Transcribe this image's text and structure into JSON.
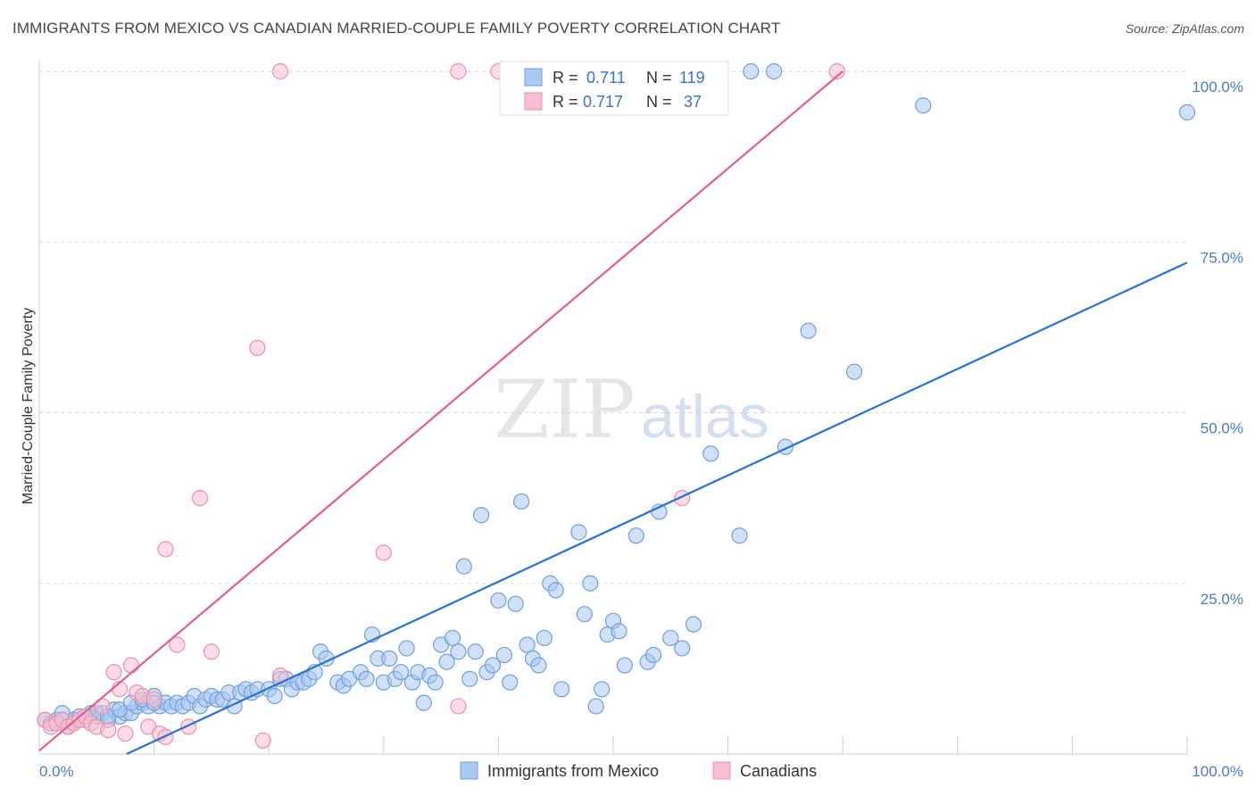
{
  "title": "IMMIGRANTS FROM MEXICO VS CANADIAN MARRIED-COUPLE FAMILY POVERTY CORRELATION CHART",
  "source": "Source: ZipAtlas.com",
  "watermark": {
    "zip": "ZIP",
    "atlas": "atlas"
  },
  "colors": {
    "blue_fill": "#aac8f0",
    "blue_stroke": "#6f9fdd",
    "blue_line": "#2a72d0",
    "pink_fill": "#f7bfd0",
    "pink_stroke": "#ec8fae",
    "pink_line": "#e0608a",
    "tick_text": "#4a7cc9",
    "grid": "#d9d9d9"
  },
  "legend": {
    "r_label": "R =",
    "n_label": "N =",
    "rows": [
      {
        "r": "0.711",
        "n": "119"
      },
      {
        "r": "0.717",
        "n": "37"
      }
    ]
  },
  "chart_data": {
    "type": "scatter",
    "title": "IMMIGRANTS FROM MEXICO VS CANADIAN MARRIED-COUPLE FAMILY POVERTY CORRELATION CHART",
    "xlabel": "",
    "ylabel": "Married-Couple Family Poverty",
    "xlim": [
      0,
      100
    ],
    "ylim": [
      0,
      100
    ],
    "x_tick_labels": [
      "0.0%",
      "100.0%"
    ],
    "y_ticks": [
      25,
      50,
      75,
      100
    ],
    "y_tick_labels": [
      "25.0%",
      "50.0%",
      "75.0%",
      "100.0%"
    ],
    "grid": true,
    "legend_position": "top-center",
    "series": [
      {
        "name": "Immigrants from Mexico",
        "r": 0.711,
        "n": 119,
        "trend": [
          [
            7.6,
            0
          ],
          [
            100,
            72
          ]
        ],
        "points": [
          [
            0.5,
            5
          ],
          [
            1,
            4.5
          ],
          [
            1.5,
            5
          ],
          [
            2,
            6
          ],
          [
            2.5,
            4
          ],
          [
            3,
            5
          ],
          [
            3.5,
            5.5
          ],
          [
            4,
            5
          ],
          [
            4.5,
            6
          ],
          [
            5,
            5.5
          ],
          [
            5.5,
            6
          ],
          [
            6,
            5
          ],
          [
            6.5,
            6.5
          ],
          [
            7,
            5.5
          ],
          [
            7.5,
            6
          ],
          [
            8,
            6
          ],
          [
            8.5,
            7
          ],
          [
            9,
            7.5
          ],
          [
            9.5,
            7
          ],
          [
            10,
            8.5
          ],
          [
            10.5,
            7
          ],
          [
            11,
            7.5
          ],
          [
            11.5,
            7
          ],
          [
            12,
            7.5
          ],
          [
            12.5,
            7
          ],
          [
            13,
            7.5
          ],
          [
            13.5,
            8.5
          ],
          [
            14,
            7
          ],
          [
            14.5,
            8
          ],
          [
            15,
            8.5
          ],
          [
            15.5,
            8
          ],
          [
            16,
            8
          ],
          [
            16.5,
            9
          ],
          [
            17,
            7
          ],
          [
            17.5,
            9
          ],
          [
            18,
            9.5
          ],
          [
            18.5,
            9
          ],
          [
            19,
            9.5
          ],
          [
            20,
            9.5
          ],
          [
            20.5,
            8.5
          ],
          [
            21,
            11
          ],
          [
            21.5,
            11
          ],
          [
            22,
            9.5
          ],
          [
            22.5,
            10.5
          ],
          [
            23,
            10.5
          ],
          [
            23.5,
            11
          ],
          [
            24,
            12
          ],
          [
            24.5,
            15
          ],
          [
            25,
            14
          ],
          [
            26,
            10.5
          ],
          [
            26.5,
            10
          ],
          [
            27,
            11
          ],
          [
            28,
            12
          ],
          [
            28.5,
            11
          ],
          [
            29,
            17.5
          ],
          [
            29.5,
            14
          ],
          [
            30,
            10.5
          ],
          [
            30.5,
            14
          ],
          [
            31,
            11
          ],
          [
            31.5,
            12
          ],
          [
            32,
            15.5
          ],
          [
            32.5,
            10.5
          ],
          [
            33,
            12
          ],
          [
            33.5,
            7.5
          ],
          [
            34,
            11.5
          ],
          [
            34.5,
            10.5
          ],
          [
            35,
            16
          ],
          [
            35.5,
            13.5
          ],
          [
            36,
            17
          ],
          [
            36.5,
            15
          ],
          [
            37,
            27.5
          ],
          [
            37.5,
            11
          ],
          [
            38,
            15
          ],
          [
            38.5,
            35
          ],
          [
            39,
            12
          ],
          [
            39.5,
            13
          ],
          [
            40,
            22.5
          ],
          [
            40.5,
            14.5
          ],
          [
            41,
            10.5
          ],
          [
            41.5,
            22
          ],
          [
            42,
            37
          ],
          [
            42.5,
            16
          ],
          [
            43,
            14
          ],
          [
            43.5,
            13
          ],
          [
            44,
            17
          ],
          [
            44.5,
            25
          ],
          [
            45,
            24
          ],
          [
            45.5,
            9.5
          ],
          [
            47,
            32.5
          ],
          [
            47.5,
            20.5
          ],
          [
            48,
            25
          ],
          [
            48.5,
            7
          ],
          [
            49,
            9.5
          ],
          [
            49.5,
            17.5
          ],
          [
            50,
            19.5
          ],
          [
            50.5,
            18
          ],
          [
            51,
            13
          ],
          [
            52,
            32
          ],
          [
            53,
            13.5
          ],
          [
            53.5,
            14.5
          ],
          [
            54,
            35.5
          ],
          [
            55,
            17
          ],
          [
            56,
            15.5
          ],
          [
            57,
            19
          ],
          [
            58.5,
            44
          ],
          [
            61,
            32
          ],
          [
            62,
            100
          ],
          [
            64,
            100
          ],
          [
            65,
            45
          ],
          [
            67,
            62
          ],
          [
            71,
            56
          ],
          [
            77,
            95
          ],
          [
            100,
            94
          ],
          [
            2,
            5
          ],
          [
            3,
            4.5
          ],
          [
            4,
            5.5
          ],
          [
            5,
            6
          ],
          [
            6,
            5.5
          ],
          [
            7,
            6.5
          ],
          [
            8,
            7.5
          ],
          [
            9,
            8
          ],
          [
            10,
            7.5
          ]
        ]
      },
      {
        "name": "Canadians",
        "r": 0.717,
        "n": 37,
        "trend": [
          [
            0,
            0.5
          ],
          [
            70,
            100
          ]
        ],
        "points": [
          [
            0.5,
            5
          ],
          [
            1,
            4
          ],
          [
            1.5,
            4.5
          ],
          [
            2,
            5
          ],
          [
            2.5,
            4
          ],
          [
            3,
            4.5
          ],
          [
            3.5,
            5
          ],
          [
            4,
            5.5
          ],
          [
            4.5,
            4.5
          ],
          [
            5,
            4
          ],
          [
            5.5,
            7
          ],
          [
            6,
            3.5
          ],
          [
            6.5,
            12
          ],
          [
            7,
            9.5
          ],
          [
            7.5,
            3
          ],
          [
            8,
            13
          ],
          [
            8.5,
            9
          ],
          [
            9,
            8.5
          ],
          [
            9.5,
            4
          ],
          [
            10,
            8
          ],
          [
            10.5,
            3
          ],
          [
            11,
            2.5
          ],
          [
            11,
            30
          ],
          [
            12,
            16
          ],
          [
            13,
            4
          ],
          [
            14,
            37.5
          ],
          [
            15,
            15
          ],
          [
            19,
            59.5
          ],
          [
            19.5,
            2
          ],
          [
            21,
            11.5
          ],
          [
            21,
            100
          ],
          [
            30,
            29.5
          ],
          [
            36.5,
            7
          ],
          [
            36.5,
            100
          ],
          [
            40,
            100
          ],
          [
            56,
            37.5
          ],
          [
            69.5,
            100
          ]
        ]
      }
    ]
  },
  "bottom_legend": [
    "Immigrants from Mexico",
    "Canadians"
  ]
}
